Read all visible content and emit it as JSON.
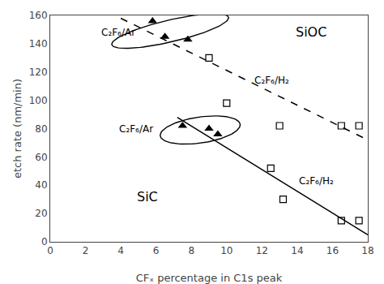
{
  "chart_data": {
    "type": "scatter",
    "xlabel": "CFₓ percentage in C1s peak",
    "ylabel": "etch rate (nm/min)",
    "xlim": [
      0,
      18
    ],
    "ylim": [
      0,
      160
    ],
    "xticks": [
      0,
      2,
      4,
      6,
      8,
      10,
      12,
      14,
      16,
      18
    ],
    "yticks": [
      0,
      20,
      40,
      60,
      80,
      100,
      120,
      140,
      160
    ],
    "grid": false,
    "series": [
      {
        "type": "scatter",
        "marker": "square-open",
        "color": "black",
        "x": [
          9.0,
          10.0,
          13.0,
          16.5,
          17.5
        ],
        "values": [
          130,
          98,
          82,
          82,
          82
        ]
      },
      {
        "type": "scatter",
        "marker": "square-open",
        "color": "black",
        "x": [
          12.5,
          13.2,
          16.5,
          17.5
        ],
        "values": [
          52,
          30,
          15,
          15
        ]
      },
      {
        "type": "scatter",
        "marker": "triangle-up",
        "color": "black",
        "x": [
          5.8,
          6.5,
          7.8
        ],
        "values": [
          156,
          145,
          143
        ]
      },
      {
        "type": "scatter",
        "marker": "triangle-up",
        "color": "black",
        "x": [
          7.5,
          9.0,
          9.5
        ],
        "values": [
          82,
          80,
          76
        ]
      },
      {
        "type": "line",
        "line_style": "dash",
        "color": "black",
        "x": [
          4.0,
          18.0
        ],
        "values": [
          158,
          72
        ]
      },
      {
        "type": "line",
        "line_style": "solid",
        "color": "black",
        "x": [
          7.2,
          18.0
        ],
        "values": [
          88,
          5
        ]
      }
    ],
    "ellipses": [
      {
        "cx": 6.8,
        "cy": 149,
        "width": 4.2,
        "height": 25,
        "angle": -12
      },
      {
        "cx": 8.5,
        "cy": 79,
        "width": 4.2,
        "height": 20,
        "angle": -5
      }
    ],
    "annotations": [
      {
        "text": "C₂F₆/Ar",
        "x": 2.8,
        "y": 148
      },
      {
        "text": "C₂F₆/H₂",
        "x": 11.5,
        "y": 114
      },
      {
        "text": "C₂F₆/Ar",
        "x": 3.8,
        "y": 80
      },
      {
        "text": "C₂F₆/H₂",
        "x": 14.0,
        "y": 43
      }
    ],
    "labels": [
      {
        "text": "SiOC",
        "x": 14.8,
        "y": 148
      },
      {
        "text": "SiC",
        "x": 5.5,
        "y": 32
      }
    ]
  }
}
